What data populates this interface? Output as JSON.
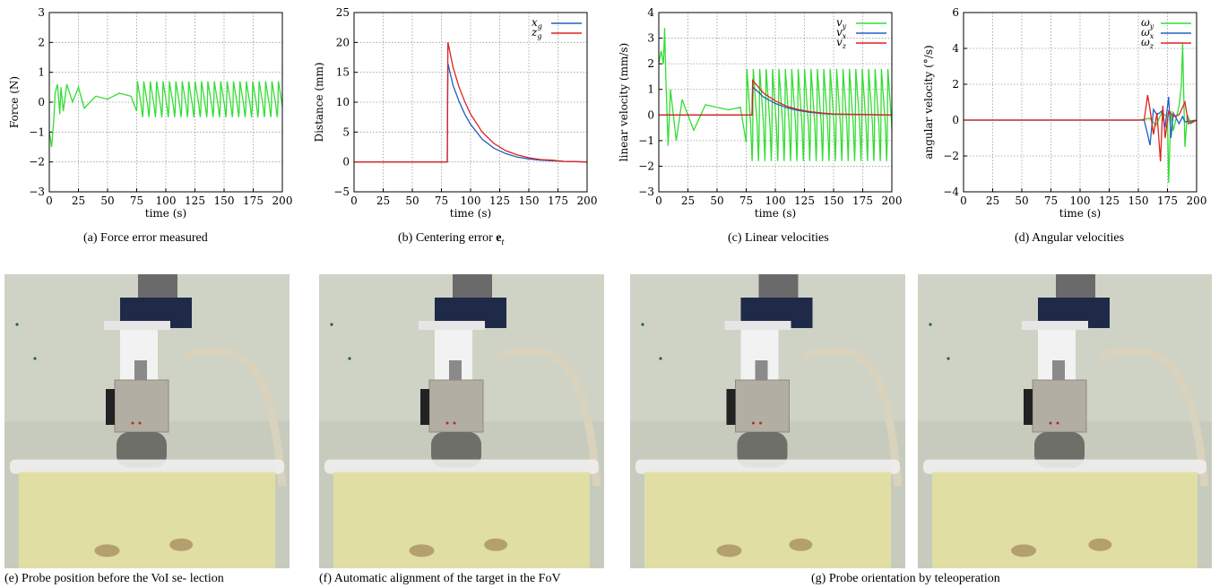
{
  "charts": [
    {
      "id": "a",
      "caption": "(a) Force error measured",
      "chart_data": {
        "type": "line",
        "xlabel": "time (s)",
        "ylabel": "Force (N)",
        "xlim": [
          0,
          200
        ],
        "ylim": [
          -3,
          3
        ],
        "xticks": [
          "0",
          "25",
          "50",
          "75",
          "100",
          "125",
          "150",
          "175",
          "200"
        ],
        "yticks": [
          "−3",
          "−2",
          "−1",
          "0",
          "1",
          "2",
          "3"
        ],
        "grid": true,
        "series": [
          {
            "color": "#33dd33",
            "x": [
              0,
              2,
              4,
              5,
              7,
              9,
              10,
              12,
              15,
              20,
              25,
              30,
              40,
              50,
              60,
              70,
              75,
              80,
              90,
              100,
              110,
              120,
              125,
              130,
              140,
              150,
              160,
              170,
              180,
              190,
              200
            ],
            "y": [
              -1.0,
              -1.5,
              -0.5,
              0.3,
              0.6,
              -0.4,
              0.5,
              -0.3,
              0.6,
              0.0,
              0.5,
              -0.2,
              0.2,
              0.1,
              0.3,
              0.2,
              0.5,
              0.3,
              0.6,
              0.4,
              0.7,
              0.5,
              0.6,
              0.4,
              0.5,
              0.6,
              0.5,
              0.4,
              0.6,
              0.5,
              -0.5
            ],
            "oscillation": {
              "from": 75,
              "period": 5.5,
              "high": 0.7,
              "low": -0.5
            }
          }
        ]
      }
    },
    {
      "id": "b",
      "caption": "(b) Centering error ",
      "caption_math": "e",
      "caption_math_sub": "t",
      "chart_data": {
        "type": "line",
        "xlabel": "time (s)",
        "ylabel": "Distance (mm)",
        "xlim": [
          0,
          200
        ],
        "ylim": [
          -5,
          25
        ],
        "xticks": [
          "0",
          "25",
          "50",
          "75",
          "100",
          "125",
          "150",
          "175",
          "200"
        ],
        "yticks": [
          "−5",
          "0",
          "5",
          "10",
          "15",
          "20",
          "25"
        ],
        "grid": true,
        "legend_position": "top-right",
        "series": [
          {
            "name": "x",
            "name_sub": "g",
            "color": "#2060c0",
            "x": [
              0,
              80,
              80.5,
              85,
              90,
              95,
              100,
              110,
              120,
              130,
              140,
              150,
              160,
              170,
              180,
              200
            ],
            "y": [
              0,
              0,
              16.5,
              12.8,
              10.2,
              8.0,
              6.3,
              3.8,
              2.3,
              1.4,
              0.8,
              0.5,
              0.3,
              0.2,
              0.1,
              0.0
            ]
          },
          {
            "name": "z",
            "name_sub": "g",
            "color": "#dd2222",
            "x": [
              0,
              80,
              80.5,
              85,
              90,
              95,
              100,
              110,
              120,
              130,
              140,
              150,
              160,
              170,
              180,
              200
            ],
            "y": [
              0,
              0,
              20.0,
              15.8,
              12.6,
              10.1,
              8.0,
              5.0,
              3.1,
              1.9,
              1.2,
              0.7,
              0.4,
              0.3,
              0.1,
              0.0
            ]
          }
        ]
      }
    },
    {
      "id": "c",
      "caption": "(c) Linear velocities",
      "chart_data": {
        "type": "line",
        "xlabel": "time (s)",
        "ylabel": "linear velocity (mm/s)",
        "xlim": [
          0,
          200
        ],
        "ylim": [
          -3,
          4
        ],
        "xticks": [
          "0",
          "25",
          "50",
          "75",
          "100",
          "125",
          "150",
          "175",
          "200"
        ],
        "yticks": [
          "−3",
          "−2",
          "−1",
          "0",
          "1",
          "2",
          "3",
          "4"
        ],
        "grid": true,
        "legend_position": "top-right",
        "series": [
          {
            "name": "v",
            "name_sub": "y",
            "color": "#33dd33",
            "x": [
              0,
              2,
              4,
              5,
              6,
              8,
              10,
              15,
              20,
              30,
              40,
              50,
              60,
              70,
              75,
              200
            ],
            "y": [
              2.0,
              2.5,
              2.0,
              3.4,
              1.5,
              -1.2,
              1.0,
              -1.0,
              0.6,
              -0.6,
              0.4,
              0.3,
              0.2,
              0.3,
              0.1,
              0.0
            ],
            "oscillation": {
              "from": 75,
              "period": 5.5,
              "high": 1.8,
              "low": -1.8
            }
          },
          {
            "name": "v",
            "name_sub": "x",
            "color": "#2060c0",
            "x": [
              0,
              80,
              80.5,
              90,
              100,
              110,
              120,
              130,
              140,
              150,
              200
            ],
            "y": [
              0,
              0,
              1.1,
              0.7,
              0.45,
              0.28,
              0.17,
              0.1,
              0.06,
              0.03,
              0
            ]
          },
          {
            "name": "v",
            "name_sub": "z",
            "color": "#dd2222",
            "x": [
              0,
              80,
              80.5,
              90,
              100,
              110,
              120,
              130,
              140,
              150,
              200
            ],
            "y": [
              0,
              0,
              1.35,
              0.85,
              0.55,
              0.34,
              0.21,
              0.13,
              0.08,
              0.04,
              0
            ]
          }
        ]
      }
    },
    {
      "id": "d",
      "caption": "(d) Angular velocities",
      "chart_data": {
        "type": "line",
        "xlabel": "time (s)",
        "ylabel": "angular velocity (°/s)",
        "xlim": [
          0,
          200
        ],
        "ylim": [
          -4,
          6
        ],
        "xticks": [
          "0",
          "25",
          "50",
          "75",
          "100",
          "125",
          "150",
          "175",
          "200"
        ],
        "yticks": [
          "−4",
          "−2",
          "0",
          "2",
          "4",
          "6"
        ],
        "grid": true,
        "legend_position": "top-right",
        "series": [
          {
            "name": "ω",
            "name_sub": "y",
            "color": "#33dd33",
            "x": [
              0,
              150,
              160,
              165,
              170,
              175,
              176,
              178,
              180,
              185,
              187,
              188,
              190,
              192,
              195,
              200
            ],
            "y": [
              0,
              0,
              0.1,
              -0.3,
              0.4,
              0.2,
              -3.5,
              0.5,
              -0.6,
              0.8,
              2.0,
              4.3,
              -1.5,
              0.3,
              -0.2,
              0
            ]
          },
          {
            "name": "ω",
            "name_sub": "x",
            "color": "#2060c0",
            "x": [
              0,
              155,
              158,
              160,
              163,
              166,
              170,
              173,
              176,
              178,
              180,
              185,
              188,
              190,
              200
            ],
            "y": [
              0,
              0,
              -0.8,
              -1.4,
              0.6,
              0.3,
              0.5,
              -0.4,
              1.3,
              -1.0,
              0.4,
              -0.2,
              0.2,
              -0.1,
              0
            ]
          },
          {
            "name": "ω",
            "name_sub": "z",
            "color": "#dd2222",
            "x": [
              0,
              155,
              158,
              160,
              163,
              166,
              169,
              171,
              173,
              176,
              180,
              185,
              190,
              193,
              200
            ],
            "y": [
              0,
              0,
              1.4,
              0.6,
              -0.8,
              0.4,
              -2.3,
              0.8,
              -1.0,
              0.5,
              0.2,
              0.3,
              1.0,
              -0.2,
              0
            ]
          }
        ]
      }
    }
  ],
  "photos": [
    {
      "id": "e",
      "caption": "(e) Probe position before the VoI se- lection"
    },
    {
      "id": "f",
      "caption": "(f) Automatic alignment of the target in the FoV"
    },
    {
      "id": "g1",
      "caption": ""
    },
    {
      "id": "g2",
      "caption": ""
    }
  ],
  "shared_caption": "(g) Probe orientation by teleoperation",
  "colors": {
    "green": "#33dd33",
    "blue": "#2060c0",
    "red": "#dd2222",
    "wall": "#cfd3c6",
    "liquid": "#e2e0a0"
  }
}
